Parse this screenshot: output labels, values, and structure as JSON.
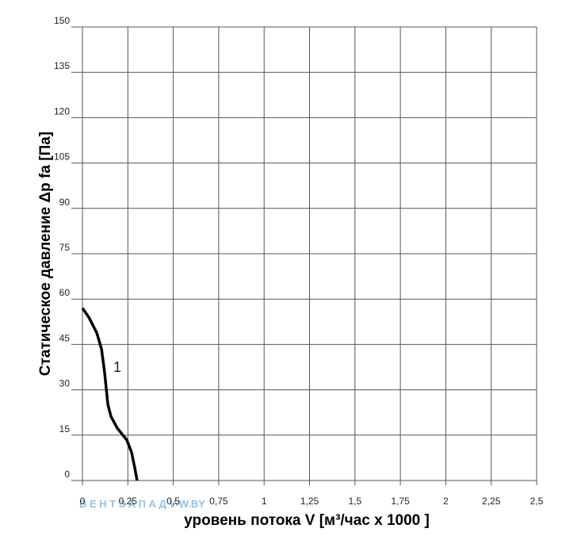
{
  "chart_data": {
    "type": "line",
    "y_label": "Статическое давление  Δp fa [Па]",
    "x_label": "уровень потока  V [м³/час x 1000 ]",
    "annotation": "1",
    "watermark": "В Е Н Т  З А П А Д  V-W.BY",
    "xlim": [
      0,
      2.5
    ],
    "ylim": [
      0,
      150
    ],
    "xticks": [
      0,
      {
        "value": 0.25,
        "label": "0,25"
      },
      {
        "value": 0.5,
        "label": "0,5"
      },
      {
        "value": 0.75,
        "label": "0,75"
      },
      1,
      {
        "value": 1.25,
        "label": "1,25"
      },
      {
        "value": 1.5,
        "label": "1,5"
      },
      {
        "value": 1.75,
        "label": "1,75"
      },
      2,
      {
        "value": 2.25,
        "label": "2,25"
      },
      {
        "value": 2.5,
        "label": "2,5"
      }
    ],
    "yticks": [
      0,
      15,
      30,
      45,
      60,
      75,
      90,
      105,
      120,
      135,
      150
    ],
    "grid": true,
    "series": [
      {
        "name": "1",
        "color": "#000000",
        "x": [
          0,
          0.035,
          0.079,
          0.105,
          0.122,
          0.14,
          0.157,
          0.192,
          0.244,
          0.27,
          0.288,
          0.301
        ],
        "values": [
          57,
          54,
          48.8,
          43.5,
          35.7,
          25.2,
          21.2,
          17.3,
          13.4,
          9.4,
          4.2,
          0
        ]
      }
    ]
  }
}
